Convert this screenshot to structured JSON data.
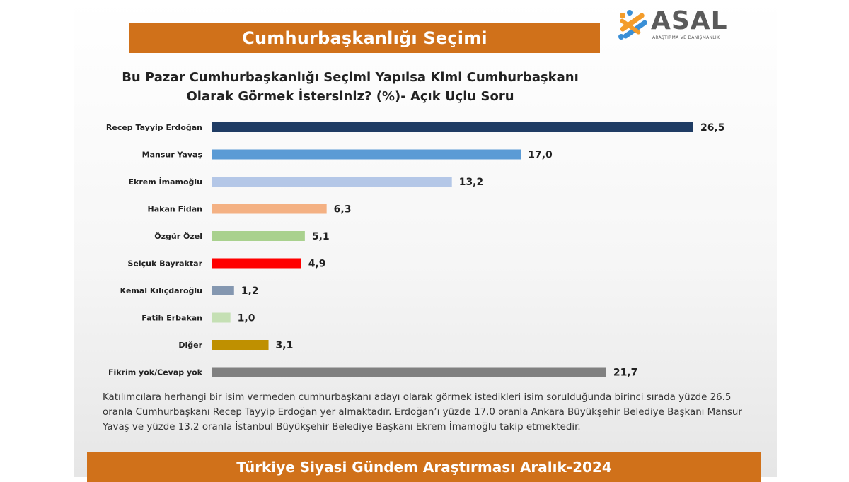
{
  "header": {
    "title": "Cumhurbaşkanlığı Seçimi"
  },
  "logo": {
    "name": "ASAL",
    "subtitle": "ARAŞTIRMA VE DANIŞMANLIK",
    "icon": "asal-logo-mark"
  },
  "question": {
    "line1": "Bu Pazar Cumhurbaşkanlığı Seçimi Yapılsa Kimi Cumhurbaşkanı",
    "line2": "Olarak Görmek İstersiniz? (%)- Açık Uçlu Soru"
  },
  "chart_data": {
    "type": "bar",
    "orientation": "horizontal",
    "title": "Bu Pazar Cumhurbaşkanlığı Seçimi Yapılsa Kimi Cumhurbaşkanı Olarak Görmek İstersiniz? (%)- Açık Uçlu Soru",
    "categories": [
      "Recep Tayyip Erdoğan",
      "Mansur Yavaş",
      "Ekrem İmamoğlu",
      "Hakan Fidan",
      "Özgür Özel",
      "Selçuk Bayraktar",
      "Kemal Kılıçdaroğlu",
      "Fatih Erbakan",
      "Diğer",
      "Fikrim yok/Cevap yok"
    ],
    "values": [
      26.5,
      17.0,
      13.2,
      6.3,
      5.1,
      4.9,
      1.2,
      1.0,
      3.1,
      21.7
    ],
    "value_labels": [
      "26,5",
      "17,0",
      "13,2",
      "6,3",
      "5,1",
      "4,9",
      "1,2",
      "1,0",
      "3,1",
      "21,7"
    ],
    "colors": [
      "#1f3c64",
      "#5b9bd5",
      "#b4c7e7",
      "#f4b183",
      "#a9d18e",
      "#ff0000",
      "#8497b0",
      "#c5e0b4",
      "#bf9000",
      "#808080"
    ],
    "xlim": [
      0,
      26.5
    ],
    "grid": false,
    "legend": "none"
  },
  "note": "Katılımcılara herhangi bir isim vermeden cumhurbaşkanı adayı olarak görmek istedikleri isim sorulduğunda birinci sırada yüzde 26.5 oranla Cumhurbaşkanı Recep Tayyip Erdoğan yer almaktadır. Erdoğan’ı yüzde 17.0 oranla Ankara Büyükşehir Belediye Başkanı Mansur Yavaş ve yüzde 13.2 oranla İstanbul Büyükşehir Belediye Başkanı Ekrem İmamoğlu takip etmektedir.",
  "footer": {
    "title": "Türkiye Siyasi Gündem Araştırması Aralık-2024"
  }
}
